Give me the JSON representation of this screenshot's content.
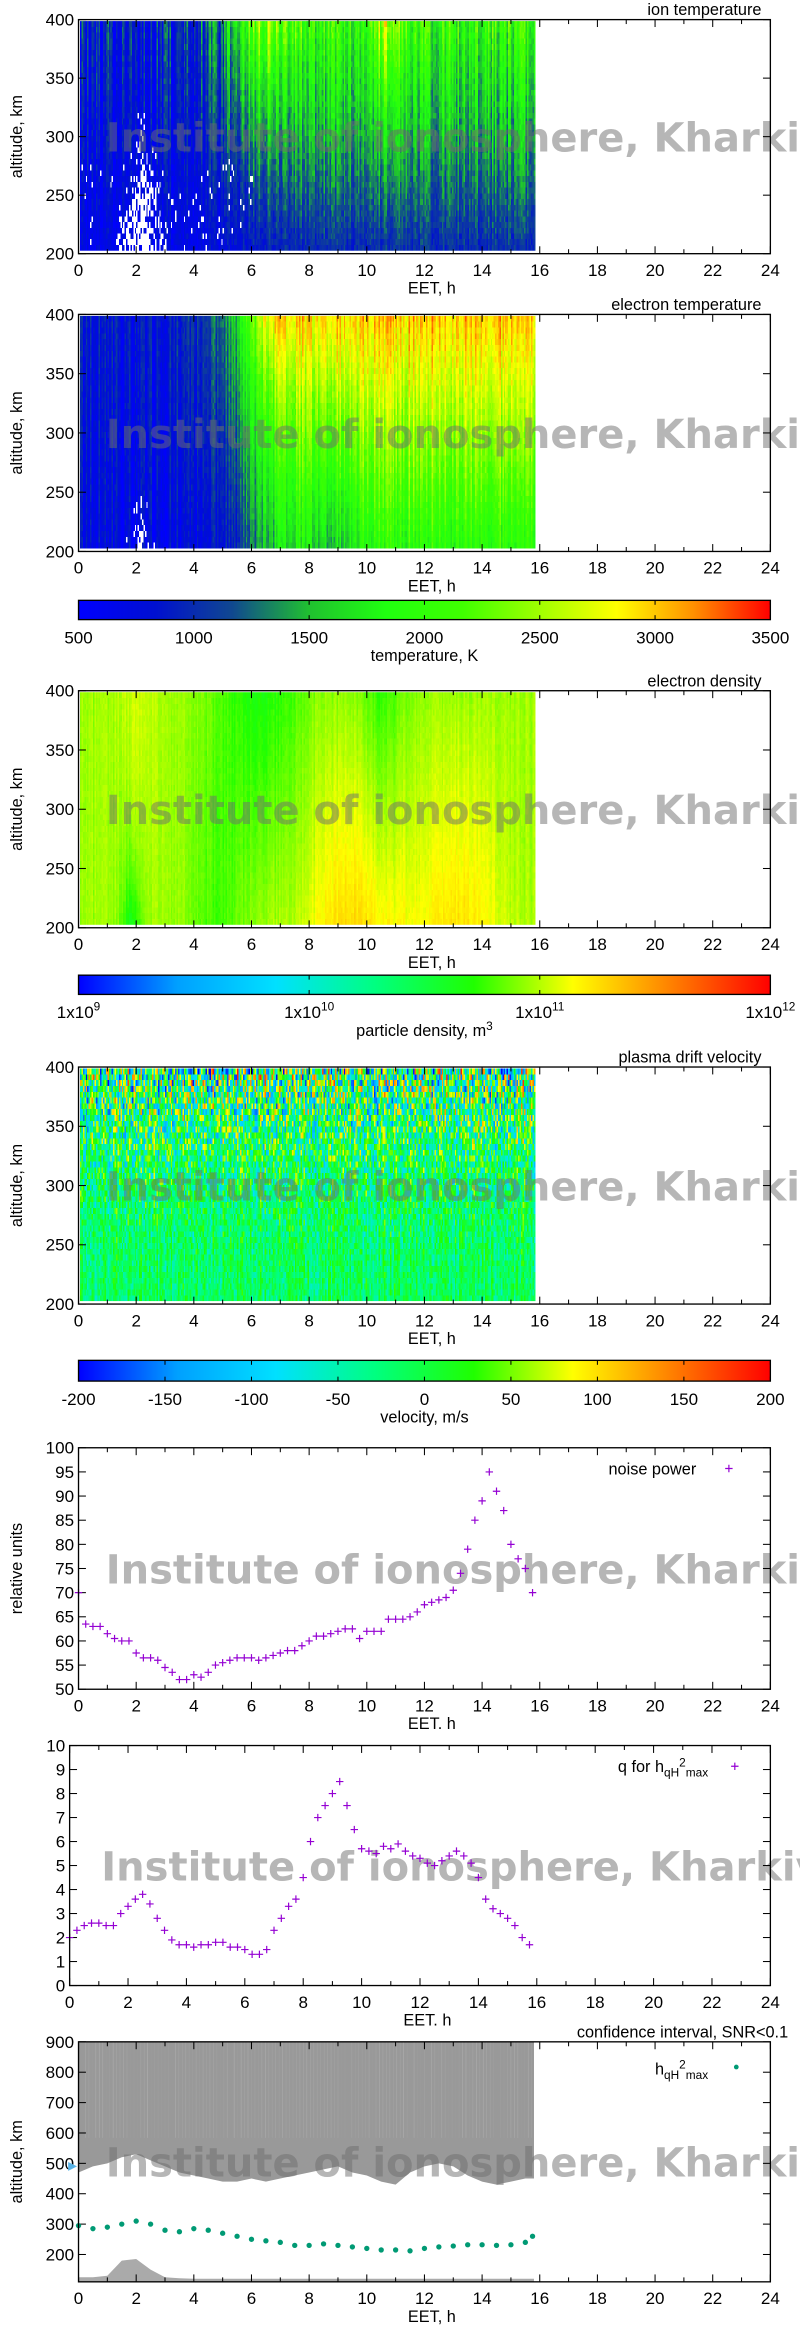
{
  "watermark": "Institute of ionosphere, Kharkiv",
  "colorbars": [
    {
      "label": "temperature, K",
      "range": [
        500,
        3500
      ],
      "ticks": [
        "500",
        "1000",
        "1500",
        "2000",
        "2500",
        "3000",
        "3500"
      ],
      "colors": [
        "#0000ff",
        "#0010d0",
        "#104890",
        "#20c030",
        "#20ff10",
        "#40ff00",
        "#a0ff00",
        "#ffff00",
        "#ff9000",
        "#ff0000"
      ]
    },
    {
      "label": "particle density, m",
      "label_sup": "3",
      "scale": "log",
      "range": [
        1000000000.0,
        1000000000000.0
      ],
      "ticks": [
        {
          "base": "1x10",
          "exp": "9"
        },
        {
          "base": "1x10",
          "exp": "10"
        },
        {
          "base": "1x10",
          "exp": "11"
        },
        {
          "base": "1x10",
          "exp": "12"
        }
      ],
      "colors": [
        "#0000ff",
        "#00a0ff",
        "#00e0ff",
        "#00ff80",
        "#20ff00",
        "#ffff00",
        "#ff8000",
        "#ff0000"
      ]
    },
    {
      "label": "velocity, m/s",
      "range": [
        -200,
        200
      ],
      "ticks": [
        "-200",
        "-150",
        "-100",
        "-50",
        "0",
        "50",
        "100",
        "150",
        "200"
      ],
      "colors": [
        "#0000ff",
        "#00a0ff",
        "#00e0ff",
        "#00ff80",
        "#20ff00",
        "#ffff00",
        "#ff8000",
        "#ff0000"
      ]
    }
  ],
  "chart_data": [
    {
      "type": "heatmap",
      "title": "ion temperature",
      "xlabel": "EET, h",
      "ylabel": "altitude, km",
      "xlim": [
        0,
        24
      ],
      "ylim": [
        200,
        400
      ],
      "xticks": [
        "0",
        "2",
        "4",
        "6",
        "8",
        "10",
        "12",
        "14",
        "16",
        "18",
        "20",
        "22",
        "24"
      ],
      "yticks": [
        "200",
        "250",
        "300",
        "350",
        "400"
      ],
      "data_x_extent": [
        0,
        15.8
      ],
      "colorbar": 0
    },
    {
      "type": "heatmap",
      "title": "electron temperature",
      "xlabel": "EET, h",
      "ylabel": "altitude, km",
      "xlim": [
        0,
        24
      ],
      "ylim": [
        200,
        400
      ],
      "xticks": [
        "0",
        "2",
        "4",
        "6",
        "8",
        "10",
        "12",
        "14",
        "16",
        "18",
        "20",
        "22",
        "24"
      ],
      "yticks": [
        "200",
        "250",
        "300",
        "350",
        "400"
      ],
      "data_x_extent": [
        0,
        15.8
      ],
      "colorbar": 0
    },
    {
      "type": "heatmap",
      "title": "electron density",
      "xlabel": "EET, h",
      "ylabel": "altitude, km",
      "xlim": [
        0,
        24
      ],
      "ylim": [
        200,
        400
      ],
      "xticks": [
        "0",
        "2",
        "4",
        "6",
        "8",
        "10",
        "12",
        "14",
        "16",
        "18",
        "20",
        "22",
        "24"
      ],
      "yticks": [
        "200",
        "250",
        "300",
        "350",
        "400"
      ],
      "data_x_extent": [
        0,
        15.8
      ],
      "colorbar": 1
    },
    {
      "type": "heatmap",
      "title": "plasma drift velocity",
      "xlabel": "EET, h",
      "ylabel": "altitude, km",
      "xlim": [
        0,
        24
      ],
      "ylim": [
        200,
        400
      ],
      "xticks": [
        "0",
        "2",
        "4",
        "6",
        "8",
        "10",
        "12",
        "14",
        "16",
        "18",
        "20",
        "22",
        "24"
      ],
      "yticks": [
        "200",
        "250",
        "300",
        "350",
        "400"
      ],
      "data_x_extent": [
        0,
        15.8
      ],
      "colorbar": 2
    },
    {
      "type": "scatter",
      "xlabel": "EET. h",
      "ylabel": "relative units",
      "xlim": [
        0,
        24
      ],
      "ylim": [
        50,
        100
      ],
      "xticks": [
        "0",
        "2",
        "4",
        "6",
        "8",
        "10",
        "12",
        "14",
        "16",
        "18",
        "20",
        "22",
        "24"
      ],
      "yticks": [
        "50",
        "55",
        "60",
        "65",
        "70",
        "75",
        "80",
        "85",
        "90",
        "95",
        "100"
      ],
      "legend": "top-right",
      "color": "#9400d3",
      "series": [
        {
          "name": "noise power",
          "x": [
            0,
            0.25,
            0.5,
            0.75,
            1,
            1.25,
            1.5,
            1.75,
            2,
            2.25,
            2.5,
            2.75,
            3,
            3.25,
            3.5,
            3.75,
            4,
            4.25,
            4.5,
            4.75,
            5,
            5.25,
            5.5,
            5.75,
            6,
            6.25,
            6.5,
            6.75,
            7,
            7.25,
            7.5,
            7.75,
            8,
            8.25,
            8.5,
            8.75,
            9,
            9.25,
            9.5,
            9.75,
            10,
            10.25,
            10.5,
            10.75,
            11,
            11.25,
            11.5,
            11.75,
            12,
            12.25,
            12.5,
            12.75,
            13,
            13.25,
            13.5,
            13.75,
            14,
            14.25,
            14.5,
            14.75,
            15,
            15.25,
            15.5,
            15.75
          ],
          "y": [
            70,
            63.5,
            63,
            63,
            61.5,
            60.5,
            60,
            60,
            57.5,
            56.5,
            56.5,
            56,
            54.5,
            53.5,
            52,
            52,
            53,
            52.5,
            53.5,
            55,
            55.5,
            56,
            56.5,
            56.5,
            56.5,
            56,
            56.5,
            57,
            57.5,
            58,
            58,
            59,
            60,
            61,
            61,
            61.5,
            62,
            62.5,
            62.5,
            60.5,
            62,
            62,
            62,
            64.5,
            64.5,
            64.5,
            65,
            66,
            67.5,
            68,
            68.5,
            69,
            70.5,
            74,
            79,
            85,
            89,
            95,
            91,
            87,
            80,
            77,
            75,
            70
          ]
        }
      ]
    },
    {
      "type": "scatter",
      "xlabel": "EET. h",
      "ylabel": "",
      "xlim": [
        0,
        24
      ],
      "ylim": [
        0,
        10
      ],
      "xticks": [
        "0",
        "2",
        "4",
        "6",
        "8",
        "10",
        "12",
        "14",
        "16",
        "18",
        "20",
        "22",
        "24"
      ],
      "yticks": [
        "0",
        "1",
        "2",
        "3",
        "4",
        "5",
        "6",
        "7",
        "8",
        "9",
        "10"
      ],
      "legend": "top-right",
      "color": "#9400d3",
      "series": [
        {
          "name": "q for hqH2max",
          "name_parts": {
            "main": "q for h",
            "sub1": "qH",
            "sup": "2",
            "sub2": "max"
          },
          "x": [
            0,
            0.25,
            0.5,
            0.75,
            1,
            1.25,
            1.5,
            1.75,
            2,
            2.25,
            2.5,
            2.75,
            3,
            3.25,
            3.5,
            3.75,
            4,
            4.25,
            4.5,
            4.75,
            5,
            5.25,
            5.5,
            5.75,
            6,
            6.25,
            6.5,
            6.75,
            7,
            7.25,
            7.5,
            7.75,
            8,
            8.25,
            8.5,
            8.75,
            9,
            9.25,
            9.5,
            9.75,
            10,
            10.25,
            10.5,
            10.75,
            11,
            11.25,
            11.5,
            11.75,
            12,
            12.25,
            12.5,
            12.75,
            13,
            13.25,
            13.5,
            13.75,
            14,
            14.25,
            14.5,
            14.75,
            15,
            15.25,
            15.5,
            15.75
          ],
          "y": [
            2,
            2.3,
            2.5,
            2.6,
            2.6,
            2.5,
            2.5,
            3,
            3.3,
            3.6,
            3.8,
            3.4,
            2.8,
            2.3,
            1.9,
            1.7,
            1.7,
            1.6,
            1.7,
            1.7,
            1.8,
            1.8,
            1.6,
            1.6,
            1.5,
            1.3,
            1.3,
            1.5,
            2.3,
            2.8,
            3.3,
            3.6,
            4.5,
            6,
            7,
            7.5,
            8,
            8.5,
            7.5,
            6.5,
            5.7,
            5.6,
            5.5,
            5.8,
            5.7,
            5.9,
            5.6,
            5.4,
            5.3,
            5.1,
            5,
            5.2,
            5.4,
            5.6,
            5.4,
            5.1,
            4.5,
            3.6,
            3.2,
            3,
            2.8,
            2.5,
            2,
            1.7
          ]
        }
      ]
    },
    {
      "type": "scatter",
      "title": "confidence interval, SNR<0.1",
      "xlabel": "EET, h",
      "ylabel": "altitude, km",
      "xlim": [
        0,
        24
      ],
      "ylim": [
        110,
        900
      ],
      "xticks": [
        "0",
        "2",
        "4",
        "6",
        "8",
        "10",
        "12",
        "14",
        "16",
        "18",
        "20",
        "22",
        "24"
      ],
      "yticks": [
        "200",
        "300",
        "400",
        "500",
        "600",
        "700",
        "800",
        "900"
      ],
      "legend": "top-right",
      "series": [
        {
          "name": "hqH2max",
          "name_parts": {
            "main": "h",
            "sub1": "qH",
            "sup": "2",
            "sub2": "max"
          },
          "color": "#009a74",
          "x": [
            0,
            0.5,
            1,
            1.5,
            2,
            2.5,
            3,
            3.5,
            4,
            4.5,
            5,
            5.5,
            6,
            6.5,
            7,
            7.5,
            8,
            8.5,
            9,
            9.5,
            10,
            10.5,
            11,
            11.5,
            12,
            12.5,
            13,
            13.5,
            14,
            14.5,
            15,
            15.5,
            15.75
          ],
          "y": [
            295,
            285,
            290,
            300,
            310,
            300,
            280,
            275,
            285,
            280,
            270,
            260,
            250,
            245,
            240,
            230,
            230,
            235,
            230,
            225,
            220,
            215,
            215,
            212,
            220,
            225,
            228,
            232,
            232,
            230,
            232,
            240,
            260
          ]
        }
      ],
      "confidence_band": {
        "color": "#999999",
        "x": [
          0,
          0.5,
          1,
          1.5,
          2,
          2.5,
          3,
          3.5,
          4,
          4.5,
          5,
          5.5,
          6,
          6.5,
          7,
          7.5,
          8,
          8.5,
          9,
          9.5,
          10,
          10.5,
          11,
          11.5,
          12,
          12.5,
          13,
          13.5,
          14,
          14.5,
          15,
          15.5,
          15.8
        ],
        "upper_band_bottom": [
          470,
          490,
          500,
          520,
          530,
          510,
          490,
          470,
          460,
          450,
          440,
          440,
          450,
          440,
          450,
          460,
          470,
          480,
          490,
          470,
          460,
          440,
          430,
          470,
          490,
          500,
          490,
          460,
          440,
          430,
          440,
          450,
          450
        ],
        "lower_band_top": [
          125,
          125,
          130,
          180,
          185,
          150,
          125,
          122,
          120,
          120,
          120,
          120,
          120,
          120,
          120,
          120,
          120,
          120,
          120,
          120,
          120,
          120,
          120,
          120,
          120,
          120,
          120,
          120,
          120,
          120,
          120,
          120,
          120
        ]
      },
      "marker_color": "#5ab4e8"
    }
  ]
}
